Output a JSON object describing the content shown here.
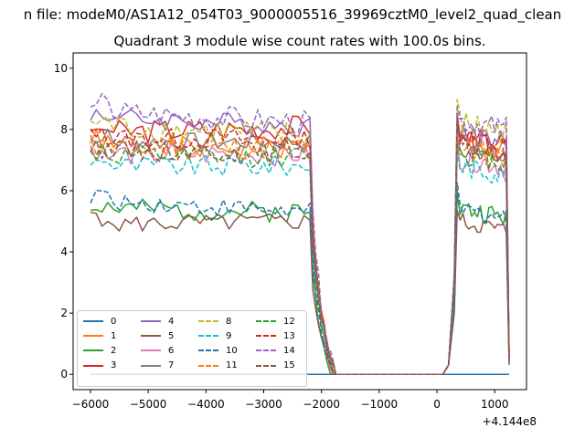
{
  "figure": {
    "suptitle": "n file: modeM0/AS1A12_054T03_9000005516_39969cztM0_level2_quad_clean",
    "plot_title": "Quadrant 3 module wise count rates with 100.0s bins."
  },
  "chart_data": {
    "type": "line",
    "title": "Quadrant 3 module wise count rates with 100.0s bins.",
    "xlabel": "",
    "ylabel": "",
    "x_offset_label": "+4.144e8",
    "xlim": [
      -6300,
      1550
    ],
    "ylim": [
      -0.5,
      10.5
    ],
    "xticks": [
      -6000,
      -5000,
      -4000,
      -3000,
      -2000,
      -1000,
      0,
      1000
    ],
    "xtick_labels": [
      "−6000",
      "−5000",
      "−4000",
      "−3000",
      "−2000",
      "−1000",
      "0",
      "1000"
    ],
    "yticks": [
      0,
      2,
      4,
      6,
      8,
      10
    ],
    "ytick_labels": [
      "0",
      "2",
      "4",
      "6",
      "8",
      "10"
    ],
    "grid": false,
    "legend": "lower-left",
    "legend_columns": 4,
    "segments": [
      {
        "from": -6000,
        "to": -2200,
        "step": 100
      },
      {
        "from": -2200,
        "to": -1800,
        "step": 50,
        "ramp": "down"
      },
      {
        "from": -1700,
        "to": 100,
        "step": 300,
        "zero": true
      },
      {
        "from": 200,
        "to": 300,
        "step": 100,
        "ramp": "up"
      },
      {
        "from": 350,
        "to": 1200,
        "step": 50
      },
      {
        "from": 1250,
        "to": 1250,
        "step": 50,
        "tail": true
      }
    ],
    "series": [
      {
        "name": "0",
        "color": "#1f77b4",
        "style": "solid",
        "zero": true
      },
      {
        "name": "1",
        "color": "#ff7f0e",
        "style": "solid",
        "base": 7.4,
        "amp": 0.4,
        "slope": 0.0,
        "peak": 7.6,
        "seed": 1
      },
      {
        "name": "2",
        "color": "#2ca02c",
        "style": "solid",
        "base": 5.4,
        "amp": 0.35,
        "slope": -0.1,
        "peak": 5.4,
        "seed": 2
      },
      {
        "name": "3",
        "color": "#d62728",
        "style": "solid",
        "base": 7.9,
        "amp": 0.4,
        "slope": 0.2,
        "peak": 7.6,
        "seed": 3
      },
      {
        "name": "4",
        "color": "#9467bd",
        "style": "solid",
        "base": 8.4,
        "amp": 0.35,
        "slope": -0.3,
        "peak": 7.9,
        "seed": 4
      },
      {
        "name": "5",
        "color": "#8c564b",
        "style": "solid",
        "base": 4.9,
        "amp": 0.3,
        "slope": 0.1,
        "peak": 5.0,
        "seed": 5
      },
      {
        "name": "6",
        "color": "#e377c2",
        "style": "solid",
        "base": 7.2,
        "amp": 0.4,
        "slope": 0.0,
        "peak": 7.1,
        "seed": 6
      },
      {
        "name": "7",
        "color": "#7f7f7f",
        "style": "solid",
        "base": 7.6,
        "amp": 0.3,
        "slope": 0.0,
        "peak": 7.4,
        "seed": 7
      },
      {
        "name": "8",
        "color": "#bcbd22",
        "style": "dashed",
        "base": 8.1,
        "amp": 0.45,
        "slope": -0.3,
        "peak": 8.2,
        "seed": 8
      },
      {
        "name": "9",
        "color": "#17becf",
        "style": "dashed",
        "base": 6.8,
        "amp": 0.35,
        "slope": 0.0,
        "peak": 6.8,
        "seed": 9
      },
      {
        "name": "10",
        "color": "#1f77b4",
        "style": "dashed",
        "base": 5.7,
        "amp": 0.3,
        "slope": -0.4,
        "peak": 5.4,
        "seed": 10
      },
      {
        "name": "11",
        "color": "#ff7f0e",
        "style": "dashed",
        "base": 7.4,
        "amp": 0.4,
        "slope": 0.0,
        "peak": 7.4,
        "seed": 11
      },
      {
        "name": "12",
        "color": "#2ca02c",
        "style": "dashed",
        "base": 7.1,
        "amp": 0.35,
        "slope": 0.0,
        "peak": 7.2,
        "seed": 12
      },
      {
        "name": "13",
        "color": "#d62728",
        "style": "dashed",
        "base": 7.7,
        "amp": 0.35,
        "slope": 0.0,
        "peak": 7.8,
        "seed": 13
      },
      {
        "name": "14",
        "color": "#9467bd",
        "style": "dashed",
        "base": 8.6,
        "amp": 0.4,
        "slope": -0.4,
        "peak": 8.3,
        "seed": 14
      },
      {
        "name": "15",
        "color": "#8c564b",
        "style": "dashed",
        "base": 7.3,
        "amp": 0.35,
        "slope": 0.0,
        "peak": 7.4,
        "seed": 15
      }
    ]
  }
}
